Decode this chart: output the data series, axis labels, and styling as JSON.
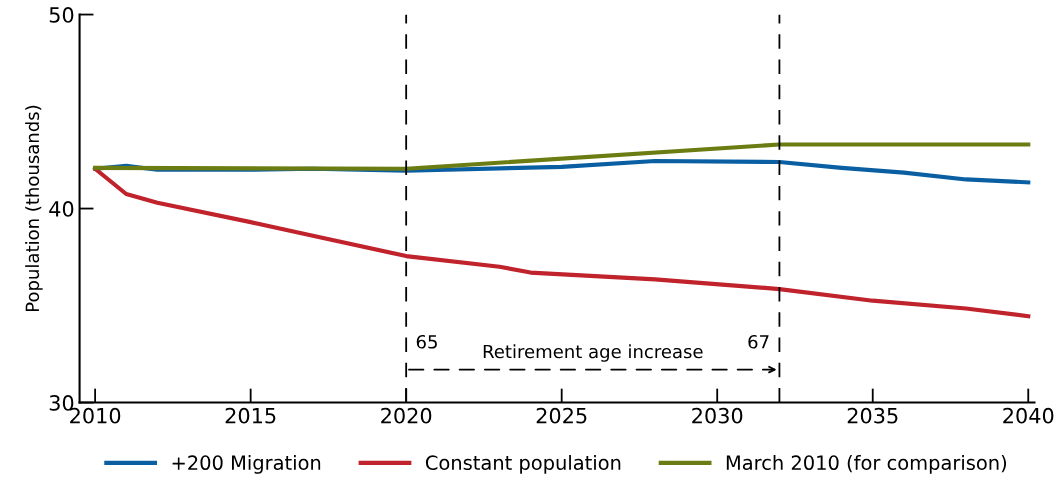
{
  "chart_data": {
    "type": "line",
    "ylabel": "Population (thousands)",
    "xlim": [
      2009.5,
      2040.2
    ],
    "xticks": [
      2010,
      2015,
      2020,
      2025,
      2030,
      2035,
      2040
    ],
    "ylim": [
      30,
      50
    ],
    "yticks": [
      30,
      40,
      50
    ],
    "grid": false,
    "legend": "bottom",
    "line_style": "solid",
    "series": [
      {
        "name": "+200 Migration",
        "color": "#0a5fa3",
        "x": [
          2010,
          2011,
          2012,
          2015,
          2017,
          2020,
          2025,
          2028,
          2032,
          2034,
          2036,
          2038,
          2040
        ],
        "values": [
          42.05,
          42.2,
          42.0,
          42.0,
          42.05,
          41.95,
          42.15,
          42.45,
          42.4,
          42.1,
          41.85,
          41.5,
          41.35
        ]
      },
      {
        "name": "Constant population",
        "color": "#c0232c",
        "x": [
          2010,
          2011,
          2012,
          2015,
          2017,
          2020,
          2023,
          2024,
          2028,
          2032,
          2035,
          2038,
          2040
        ],
        "values": [
          42.05,
          40.75,
          40.3,
          39.3,
          38.6,
          37.55,
          37.0,
          36.7,
          36.35,
          35.85,
          35.25,
          34.85,
          34.45
        ]
      },
      {
        "name": "March 2010 (for comparison)",
        "color": "#6b7d12",
        "x": [
          2010,
          2020,
          2032,
          2040
        ],
        "values": [
          42.1,
          42.05,
          43.3,
          43.3
        ]
      }
    ],
    "ref_lines": [
      {
        "axis": "x",
        "value": 2020,
        "color": "#000000",
        "line_style": "dashed"
      },
      {
        "axis": "x",
        "value": 2032,
        "color": "#000000",
        "line_style": "dashed"
      }
    ],
    "annotations": [
      {
        "text": "65",
        "x": 2020,
        "y": 32.6
      },
      "Retirement age increase",
      {
        "text": "67",
        "x": 2032,
        "y": 32.6
      }
    ]
  }
}
